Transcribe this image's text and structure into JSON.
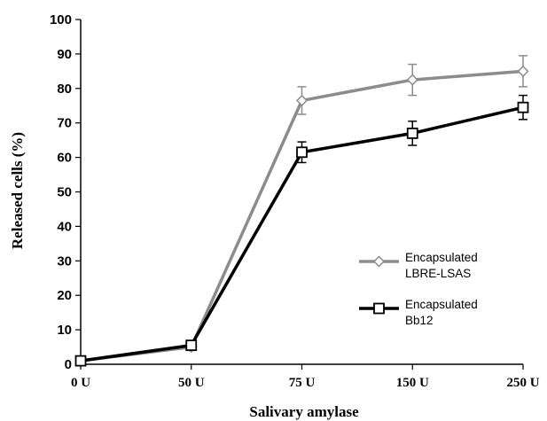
{
  "chart_data": {
    "type": "line",
    "categories": [
      "0 U",
      "50 U",
      "75 U",
      "150 U",
      "250 U"
    ],
    "xlabel": "Salivary amylase",
    "ylabel": "Released cells (%)",
    "ylim": [
      0,
      100
    ],
    "yticks": [
      0,
      10,
      20,
      30,
      40,
      50,
      60,
      70,
      80,
      90,
      100
    ],
    "grid": false,
    "legend_position": "right",
    "series": [
      {
        "name": "Encapsulated LBRE-LSAS",
        "name_lines": [
          "Encapsulated",
          "LBRE-LSAS"
        ],
        "values": [
          1,
          5,
          76.5,
          82.5,
          85
        ],
        "errors": [
          0.5,
          1,
          4,
          4.5,
          4.5
        ],
        "color": "#8c8c8c",
        "marker": "diamond"
      },
      {
        "name": "Encapsulated Bb12",
        "name_lines": [
          "Encapsulated",
          "Bb12"
        ],
        "values": [
          1,
          5.5,
          61.5,
          67,
          74.5
        ],
        "errors": [
          0.5,
          1,
          3,
          3.5,
          3.5
        ],
        "color": "#000000",
        "marker": "square"
      }
    ]
  }
}
